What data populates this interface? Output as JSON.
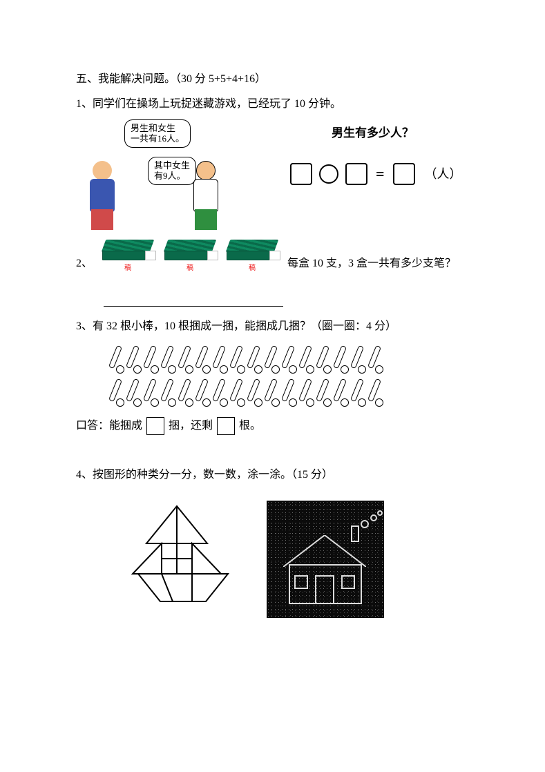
{
  "section": {
    "heading": "五、我能解决问题。（30 分 5+5+4+16）"
  },
  "q1": {
    "prompt": "1、同学们在操场上玩捉迷藏游戏，已经玩了 10 分钟。",
    "bubble_total": "男生和女生\n一共有16人。",
    "bubble_girls": "其中女生\n有9人。",
    "right_title": "男生有多少人？",
    "unit": "（人）"
  },
  "q2": {
    "label": "2、",
    "per_box": 10,
    "box_count": 3,
    "text": "每盒 10 支，3 盒一共有多少支笔？",
    "small_mark": "稿"
  },
  "q3": {
    "prompt": "3、有 32 根小棒，10 根捆成一捆，能捆成几捆？（圈一圈：4 分）",
    "sticks_total": 32,
    "row1_count": 16,
    "row2_count": 16,
    "answer_prefix": "口答：能捆成",
    "answer_mid": "捆，还剩",
    "answer_suffix": "根。"
  },
  "q4": {
    "prompt": "4、按图形的种类分一分，数一数，涂一涂。（15 分）"
  },
  "colors": {
    "text": "#000000",
    "pencil_green": "#0a6a4a",
    "kid_blue": "#3a56b0",
    "kid_red": "#d04a4a",
    "kid_green": "#2f8f3f",
    "house_bg": "#0b0b0b",
    "house_line": "#dcdcdc"
  }
}
